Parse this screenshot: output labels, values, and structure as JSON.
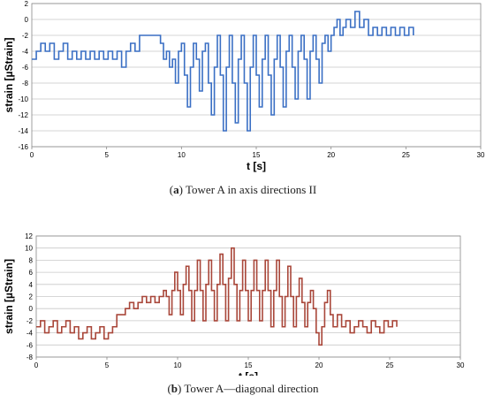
{
  "figure": {
    "caption_a_letter": "a",
    "caption_a_text": " Tower A in axis directions II",
    "caption_b_letter": "b",
    "caption_b_text": " Tower A—diagonal direction"
  },
  "chart_data": [
    {
      "type": "line",
      "title": "",
      "xlabel": "t [s]",
      "ylabel": "strain  [µStrain]",
      "xlim": [
        0,
        30
      ],
      "ylim": [
        -16,
        2
      ],
      "xticks": [
        0,
        5,
        10,
        15,
        20,
        25,
        30
      ],
      "yticks": [
        2,
        0,
        -2,
        -4,
        -6,
        -8,
        -10,
        -12,
        -14,
        -16
      ],
      "grid": "horizontal",
      "color": "#3a6fc4",
      "series": [
        {
          "values": [
            [
              0,
              -5
            ],
            [
              0.3,
              -4
            ],
            [
              0.6,
              -3
            ],
            [
              0.9,
              -4
            ],
            [
              1.2,
              -3
            ],
            [
              1.5,
              -5
            ],
            [
              1.8,
              -4
            ],
            [
              2.1,
              -3
            ],
            [
              2.4,
              -5
            ],
            [
              2.7,
              -4
            ],
            [
              3.0,
              -5
            ],
            [
              3.3,
              -4
            ],
            [
              3.6,
              -5
            ],
            [
              3.9,
              -4
            ],
            [
              4.2,
              -5
            ],
            [
              4.5,
              -4
            ],
            [
              4.8,
              -5
            ],
            [
              5.1,
              -4
            ],
            [
              5.4,
              -5
            ],
            [
              5.7,
              -4
            ],
            [
              6.0,
              -6
            ],
            [
              6.3,
              -4
            ],
            [
              6.6,
              -3
            ],
            [
              6.9,
              -4
            ],
            [
              7.2,
              -2
            ],
            [
              7.6,
              -2
            ],
            [
              8.0,
              -2
            ],
            [
              8.4,
              -2
            ],
            [
              8.6,
              -3
            ],
            [
              8.8,
              -5
            ],
            [
              9.0,
              -4
            ],
            [
              9.2,
              -6
            ],
            [
              9.4,
              -5
            ],
            [
              9.6,
              -8
            ],
            [
              9.8,
              -4
            ],
            [
              10.0,
              -3
            ],
            [
              10.2,
              -7
            ],
            [
              10.4,
              -11
            ],
            [
              10.6,
              -6
            ],
            [
              10.8,
              -3
            ],
            [
              11.0,
              -5
            ],
            [
              11.2,
              -9
            ],
            [
              11.4,
              -4
            ],
            [
              11.6,
              -3
            ],
            [
              11.8,
              -8
            ],
            [
              12.0,
              -12
            ],
            [
              12.2,
              -6
            ],
            [
              12.4,
              -2
            ],
            [
              12.6,
              -7
            ],
            [
              12.8,
              -14
            ],
            [
              13.0,
              -6
            ],
            [
              13.2,
              -2
            ],
            [
              13.4,
              -8
            ],
            [
              13.6,
              -13
            ],
            [
              13.8,
              -5
            ],
            [
              14.0,
              -2
            ],
            [
              14.2,
              -8
            ],
            [
              14.4,
              -14
            ],
            [
              14.6,
              -6
            ],
            [
              14.8,
              -2
            ],
            [
              15.0,
              -7
            ],
            [
              15.2,
              -11
            ],
            [
              15.4,
              -5
            ],
            [
              15.6,
              -2
            ],
            [
              15.8,
              -7
            ],
            [
              16.0,
              -12
            ],
            [
              16.2,
              -5
            ],
            [
              16.4,
              -2
            ],
            [
              16.6,
              -6
            ],
            [
              16.8,
              -11
            ],
            [
              17.0,
              -4
            ],
            [
              17.2,
              -2
            ],
            [
              17.4,
              -6
            ],
            [
              17.6,
              -10
            ],
            [
              17.8,
              -4
            ],
            [
              18.0,
              -2
            ],
            [
              18.2,
              -5
            ],
            [
              18.4,
              -10
            ],
            [
              18.6,
              -4
            ],
            [
              18.8,
              -2
            ],
            [
              19.0,
              -5
            ],
            [
              19.2,
              -8
            ],
            [
              19.4,
              -3
            ],
            [
              19.6,
              -2
            ],
            [
              19.8,
              -4
            ],
            [
              20.0,
              -2
            ],
            [
              20.2,
              -1
            ],
            [
              20.4,
              0
            ],
            [
              20.6,
              -2
            ],
            [
              20.8,
              -1
            ],
            [
              21.0,
              0
            ],
            [
              21.3,
              -1
            ],
            [
              21.6,
              1
            ],
            [
              21.9,
              -1
            ],
            [
              22.2,
              0
            ],
            [
              22.5,
              -2
            ],
            [
              22.8,
              -1
            ],
            [
              23.1,
              -2
            ],
            [
              23.4,
              -1
            ],
            [
              23.7,
              -2
            ],
            [
              24.0,
              -1
            ],
            [
              24.3,
              -2
            ],
            [
              24.6,
              -1
            ],
            [
              24.9,
              -2
            ],
            [
              25.2,
              -1
            ],
            [
              25.5,
              -2
            ]
          ]
        }
      ]
    },
    {
      "type": "line",
      "title": "",
      "xlabel": "t [s]",
      "ylabel": "strain  [µStrain]",
      "xlim": [
        0,
        30
      ],
      "ylim": [
        -8,
        12
      ],
      "xticks": [
        0,
        5,
        10,
        15,
        20,
        25,
        30
      ],
      "yticks": [
        12,
        10,
        8,
        6,
        4,
        2,
        0,
        -2,
        -4,
        -6,
        -8
      ],
      "grid": "horizontal",
      "color": "#a9473a",
      "series": [
        {
          "values": [
            [
              0,
              -3
            ],
            [
              0.3,
              -2
            ],
            [
              0.6,
              -4
            ],
            [
              0.9,
              -3
            ],
            [
              1.2,
              -2
            ],
            [
              1.5,
              -4
            ],
            [
              1.8,
              -3
            ],
            [
              2.1,
              -2
            ],
            [
              2.4,
              -4
            ],
            [
              2.7,
              -3
            ],
            [
              3.0,
              -5
            ],
            [
              3.3,
              -4
            ],
            [
              3.6,
              -3
            ],
            [
              3.9,
              -5
            ],
            [
              4.2,
              -4
            ],
            [
              4.5,
              -3
            ],
            [
              4.8,
              -5
            ],
            [
              5.1,
              -4
            ],
            [
              5.4,
              -3
            ],
            [
              5.7,
              -1
            ],
            [
              6.0,
              -1
            ],
            [
              6.3,
              0
            ],
            [
              6.6,
              1
            ],
            [
              6.9,
              0
            ],
            [
              7.2,
              1
            ],
            [
              7.5,
              2
            ],
            [
              7.8,
              1
            ],
            [
              8.1,
              2
            ],
            [
              8.4,
              1
            ],
            [
              8.7,
              2
            ],
            [
              9.0,
              3
            ],
            [
              9.2,
              2
            ],
            [
              9.4,
              -1
            ],
            [
              9.6,
              3
            ],
            [
              9.8,
              6
            ],
            [
              10.0,
              3
            ],
            [
              10.2,
              -1
            ],
            [
              10.4,
              4
            ],
            [
              10.6,
              7
            ],
            [
              10.8,
              3
            ],
            [
              11.0,
              -2
            ],
            [
              11.2,
              3
            ],
            [
              11.4,
              8
            ],
            [
              11.6,
              3
            ],
            [
              11.8,
              -2
            ],
            [
              12.0,
              4
            ],
            [
              12.2,
              8
            ],
            [
              12.4,
              3
            ],
            [
              12.6,
              -2
            ],
            [
              12.8,
              4
            ],
            [
              13.0,
              9
            ],
            [
              13.2,
              4
            ],
            [
              13.4,
              -2
            ],
            [
              13.6,
              5
            ],
            [
              13.8,
              10
            ],
            [
              14.0,
              4
            ],
            [
              14.2,
              -2
            ],
            [
              14.4,
              3
            ],
            [
              14.6,
              8
            ],
            [
              14.8,
              3
            ],
            [
              15.0,
              -2
            ],
            [
              15.2,
              3
            ],
            [
              15.4,
              8
            ],
            [
              15.6,
              3
            ],
            [
              15.8,
              -2
            ],
            [
              16.0,
              3
            ],
            [
              16.2,
              8
            ],
            [
              16.4,
              3
            ],
            [
              16.6,
              -3
            ],
            [
              16.8,
              3
            ],
            [
              17.0,
              8
            ],
            [
              17.2,
              2
            ],
            [
              17.4,
              -3
            ],
            [
              17.6,
              2
            ],
            [
              17.8,
              7
            ],
            [
              18.0,
              2
            ],
            [
              18.2,
              -3
            ],
            [
              18.4,
              2
            ],
            [
              18.6,
              5
            ],
            [
              18.8,
              1
            ],
            [
              19.0,
              -3
            ],
            [
              19.2,
              1
            ],
            [
              19.4,
              3
            ],
            [
              19.6,
              0
            ],
            [
              19.8,
              -4
            ],
            [
              20.0,
              -6
            ],
            [
              20.2,
              -3
            ],
            [
              20.4,
              1
            ],
            [
              20.6,
              3
            ],
            [
              20.8,
              -1
            ],
            [
              21.0,
              -3
            ],
            [
              21.3,
              -1
            ],
            [
              21.6,
              -3
            ],
            [
              21.9,
              -2
            ],
            [
              22.2,
              -4
            ],
            [
              22.5,
              -3
            ],
            [
              22.8,
              -2
            ],
            [
              23.1,
              -3
            ],
            [
              23.4,
              -4
            ],
            [
              23.7,
              -2
            ],
            [
              24.0,
              -3
            ],
            [
              24.3,
              -4
            ],
            [
              24.6,
              -2
            ],
            [
              24.9,
              -3
            ],
            [
              25.2,
              -2
            ],
            [
              25.5,
              -3
            ]
          ]
        }
      ]
    }
  ]
}
